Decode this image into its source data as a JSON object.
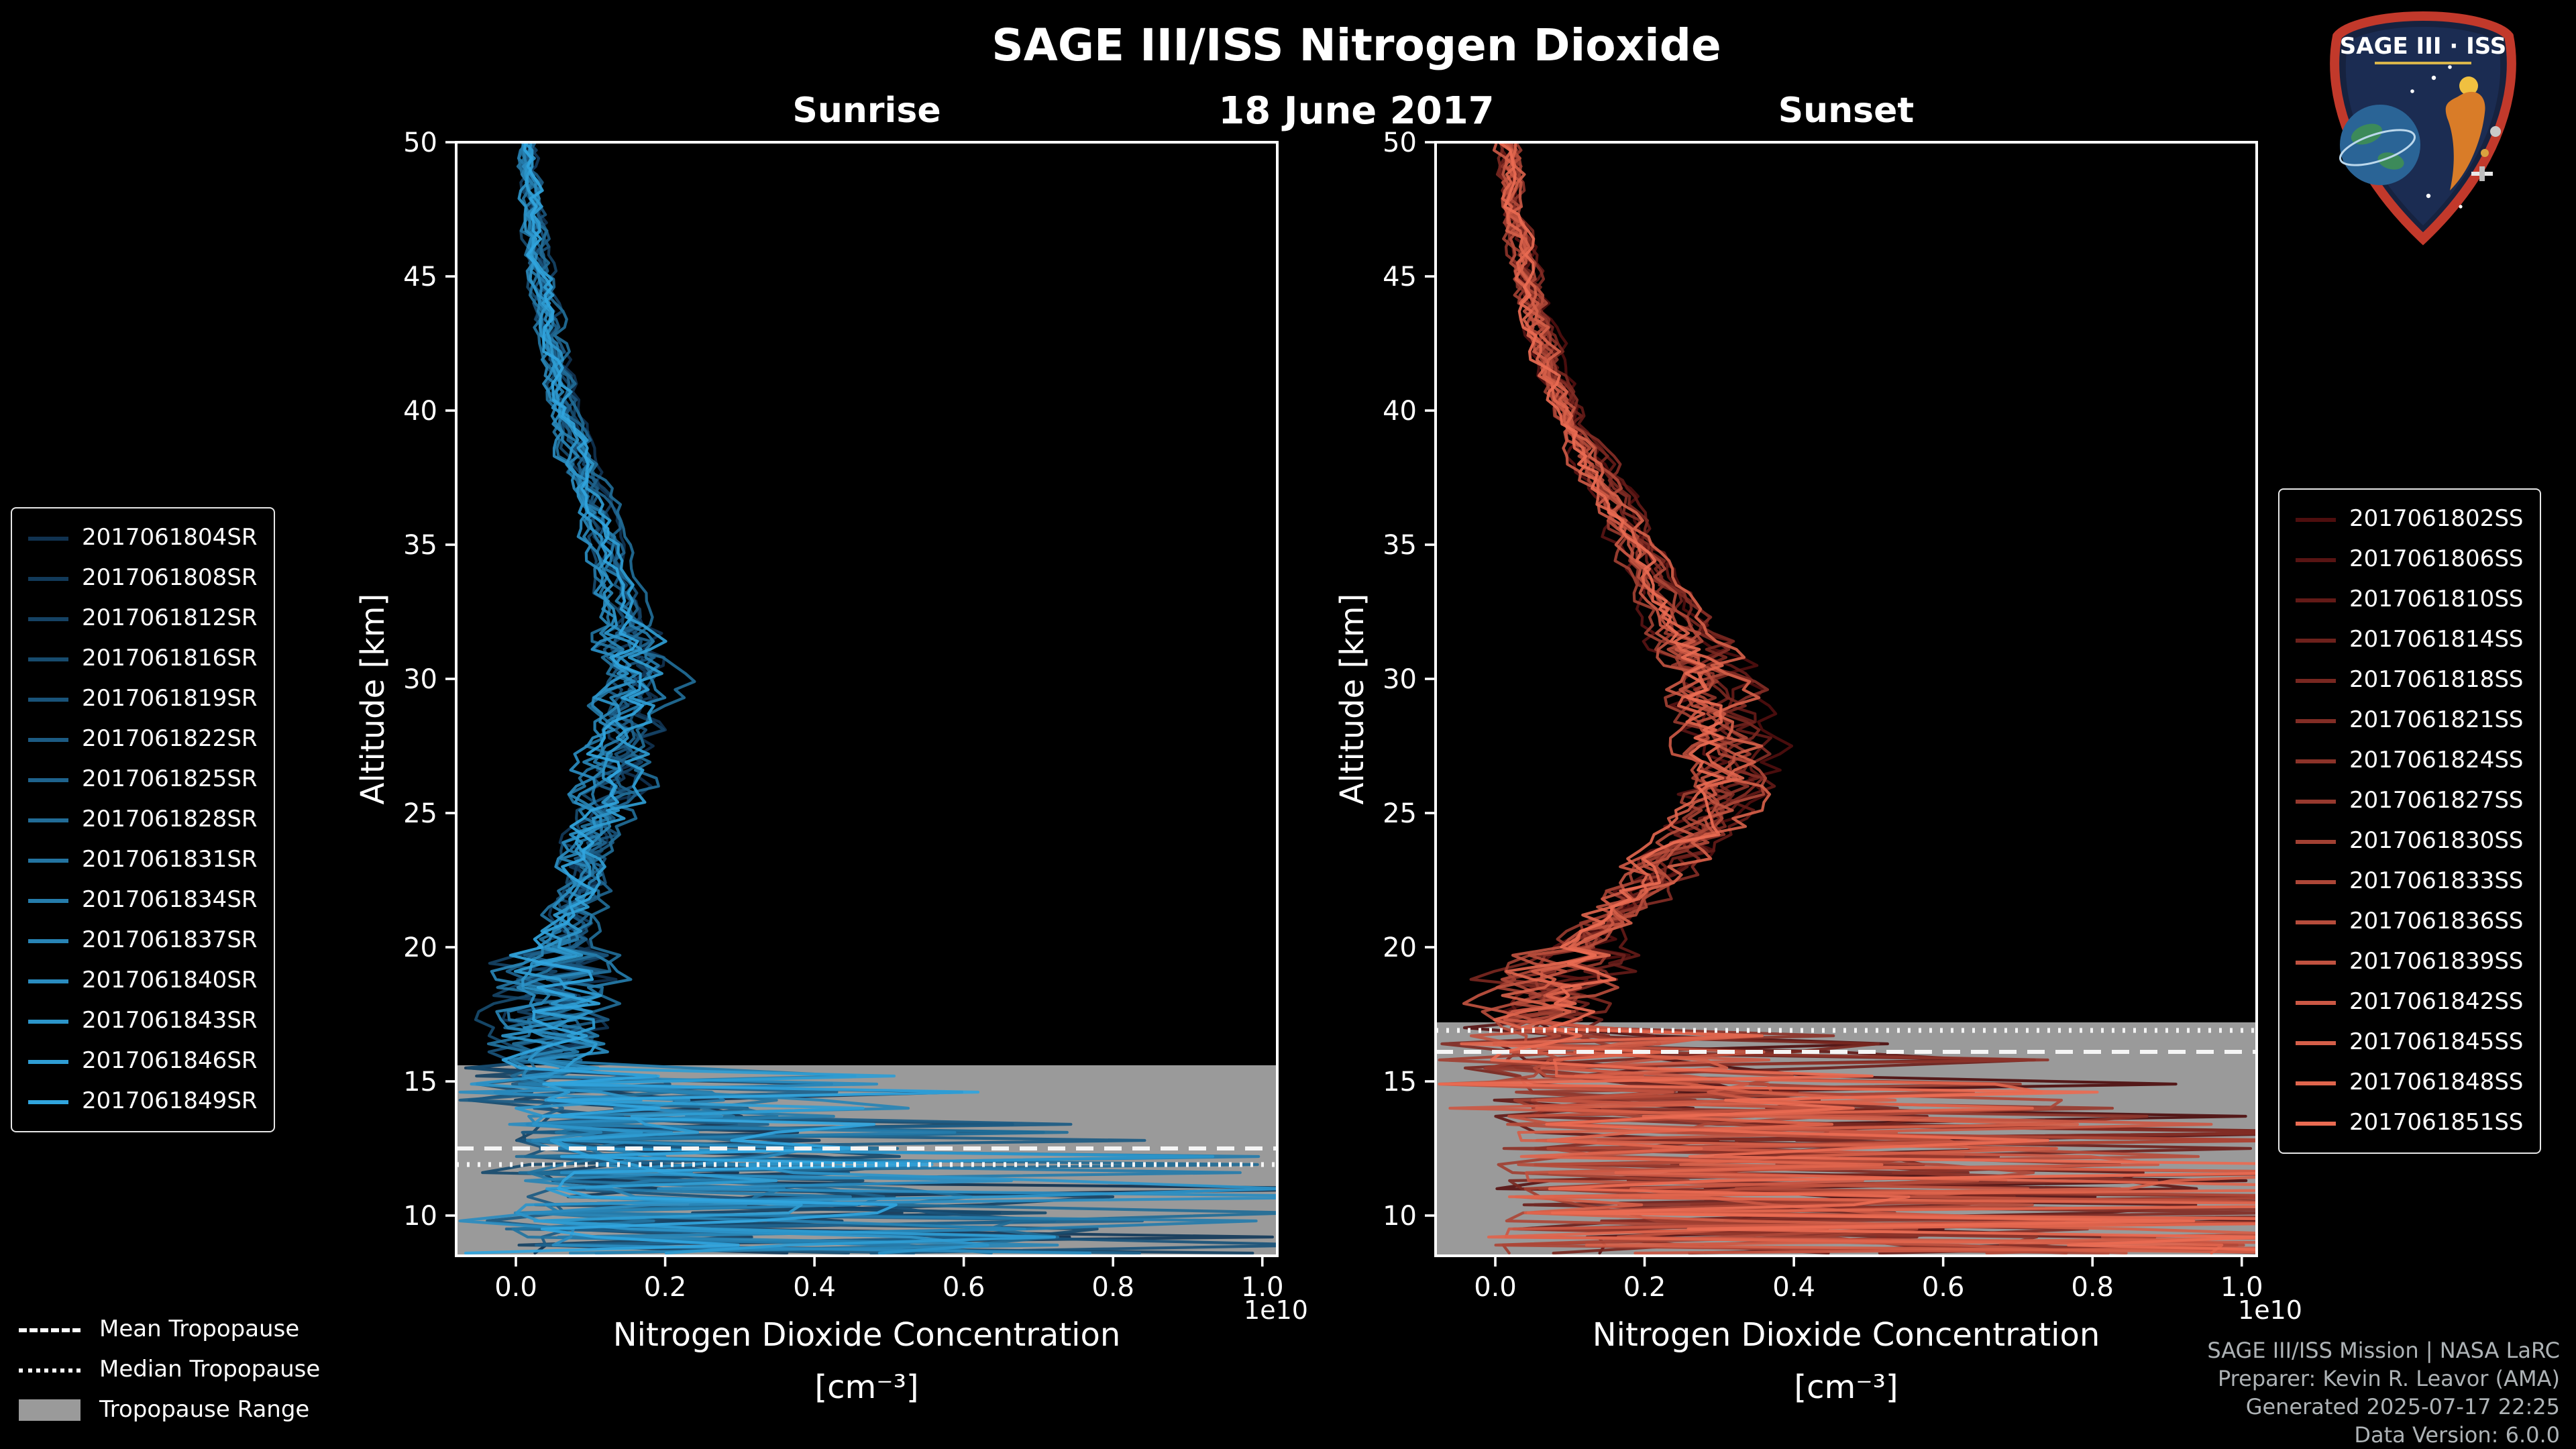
{
  "title": "SAGE III/ISS Nitrogen Dioxide",
  "date": "18 June 2017",
  "logo": {
    "text": "SAGE III · ISS"
  },
  "tropopause_legend": [
    {
      "label": "Mean Tropopause",
      "style": "dashed"
    },
    {
      "label": "Median Tropopause",
      "style": "dotted"
    },
    {
      "label": "Tropopause Range",
      "style": "patch"
    }
  ],
  "footer": {
    "credits": [
      "SAGE III/ISS Mission | NASA LaRC",
      "Preparer: Kevin R. Leavor (AMA)",
      "Generated 2025-07-17 22:25",
      "Data Version: 6.0.0"
    ]
  },
  "chart_data": [
    {
      "type": "line",
      "panel": "sunrise",
      "title": "Sunrise",
      "ylabel": "Altitude [km]",
      "xlabel": "Nitrogen Dioxide Concentration",
      "xlabel_line2": "[cm⁻³]",
      "offset_label": "1e10",
      "xlim": [
        -0.08,
        1.02
      ],
      "ylim": [
        8.5,
        50
      ],
      "xticks": [
        0.0,
        0.2,
        0.4,
        0.6,
        0.8,
        1.0
      ],
      "yticks": [
        10,
        15,
        20,
        25,
        30,
        35,
        40,
        45,
        50
      ],
      "color_start": "#103250",
      "color_end": "#31A5DE",
      "tropopause": {
        "mean": 12.5,
        "median": 11.9,
        "range_top": 15.6,
        "range_bottom": 8.5
      },
      "series_names": [
        "2017061804SR",
        "2017061808SR",
        "2017061812SR",
        "2017061816SR",
        "2017061819SR",
        "2017061822SR",
        "2017061825SR",
        "2017061828SR",
        "2017061831SR",
        "2017061834SR",
        "2017061837SR",
        "2017061840SR",
        "2017061843SR",
        "2017061846SR",
        "2017061849SR"
      ],
      "profile_alt_km": [
        50,
        47,
        44,
        42,
        40,
        38,
        36,
        34,
        32,
        30,
        29,
        28,
        26,
        24,
        22,
        20,
        18,
        16,
        15,
        14,
        13,
        12,
        11,
        10,
        9,
        8.5
      ],
      "profile_conc_1e10": [
        0.015,
        0.025,
        0.04,
        0.055,
        0.07,
        0.09,
        0.115,
        0.135,
        0.155,
        0.165,
        0.165,
        0.155,
        0.135,
        0.105,
        0.085,
        0.065,
        0.05,
        0.045,
        0.06,
        0.12,
        0.2,
        0.28,
        0.33,
        0.38,
        0.4,
        0.4
      ],
      "noise": {
        "smooth_high": 0.012,
        "smooth_mid": 0.028,
        "smooth_low": 0.07,
        "corr": 0.5,
        "spike_prob": 0.2,
        "spike_base": 0.35,
        "spike_growth": 0.15,
        "zero_prob": 0.25,
        "scale_min": 0.8,
        "scale_span": 0.4
      }
    },
    {
      "type": "line",
      "panel": "sunset",
      "title": "Sunset",
      "ylabel": "Altitude [km]",
      "xlabel": "Nitrogen Dioxide Concentration",
      "xlabel_line2": "[cm⁻³]",
      "offset_label": "1e10",
      "xlim": [
        -0.08,
        1.02
      ],
      "ylim": [
        8.5,
        50
      ],
      "xticks": [
        0.0,
        0.2,
        0.4,
        0.6,
        0.8,
        1.0
      ],
      "yticks": [
        10,
        15,
        20,
        25,
        30,
        35,
        40,
        45,
        50
      ],
      "color_start": "#4E0E0E",
      "color_end": "#EA6B52",
      "tropopause": {
        "mean": 16.1,
        "median": 16.9,
        "range_top": 17.2,
        "range_bottom": 8.5
      },
      "series_names": [
        "2017061802SS",
        "2017061806SS",
        "2017061810SS",
        "2017061814SS",
        "2017061818SS",
        "2017061821SS",
        "2017061824SS",
        "2017061827SS",
        "2017061830SS",
        "2017061833SS",
        "2017061836SS",
        "2017061839SS",
        "2017061842SS",
        "2017061845SS",
        "2017061848SS",
        "2017061851SS"
      ],
      "profile_alt_km": [
        50,
        47,
        44,
        42,
        40,
        38,
        36,
        34,
        32,
        30,
        28,
        27,
        26,
        25,
        24,
        22,
        20,
        19,
        18,
        17,
        16,
        15,
        14,
        13,
        12,
        11,
        10,
        9,
        8.5
      ],
      "profile_conc_1e10": [
        0.015,
        0.03,
        0.05,
        0.07,
        0.095,
        0.13,
        0.17,
        0.21,
        0.25,
        0.285,
        0.31,
        0.32,
        0.315,
        0.3,
        0.27,
        0.19,
        0.11,
        0.08,
        0.06,
        0.06,
        0.09,
        0.14,
        0.22,
        0.32,
        0.42,
        0.5,
        0.55,
        0.55,
        0.55
      ],
      "noise": {
        "smooth_high": 0.014,
        "smooth_mid": 0.032,
        "smooth_low": 0.07,
        "corr": 0.5,
        "spike_prob": 0.27,
        "spike_base": 0.4,
        "spike_growth": 0.16,
        "zero_prob": 0.22,
        "scale_min": 0.85,
        "scale_span": 0.3
      }
    }
  ]
}
